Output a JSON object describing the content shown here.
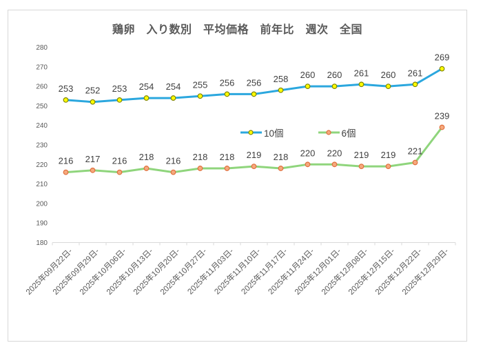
{
  "chart_data": {
    "type": "line",
    "title": "鶏卵　入り数別　平均価格　前年比　週次　全国",
    "categories": [
      "2025年09月22日-",
      "2025年09月29日-",
      "2025年10月06日-",
      "2025年10月13日-",
      "2025年10月20日-",
      "2025年10月27日-",
      "2025年11月03日-",
      "2025年11月10日-",
      "2025年11月17日-",
      "2025年11月24日-",
      "2025年12月01日-",
      "2025年12月08日-",
      "2025年12月15日-",
      "2025年12月22日-",
      "2025年12月29日-"
    ],
    "series": [
      {
        "name": "10個",
        "values": [
          253,
          252,
          253,
          254,
          254,
          255,
          256,
          256,
          258,
          260,
          260,
          261,
          260,
          261,
          269
        ],
        "line_color": "#2BA7DE",
        "marker_fill": "#FFFF00",
        "marker_border": "#7F8400"
      },
      {
        "name": "6個",
        "values": [
          216,
          217,
          216,
          218,
          216,
          218,
          218,
          219,
          218,
          220,
          220,
          219,
          219,
          221,
          239
        ],
        "line_color": "#8FD57C",
        "marker_fill": "#F5A97E",
        "marker_border": "#E06F3C"
      }
    ],
    "ylim": [
      180,
      280
    ],
    "ytick_step": 10,
    "yticks": [
      180,
      190,
      200,
      210,
      220,
      230,
      240,
      250,
      260,
      270,
      280
    ],
    "grid": "off",
    "legend_position": "center-overlay",
    "data_labels": "above-points",
    "colors": {
      "title_color": "#595959",
      "axis_color": "#d9d9d9",
      "tick_label_color": "#595959",
      "data_label_color": "#3f3f3f",
      "frame_border": "#d7d7d7"
    }
  }
}
